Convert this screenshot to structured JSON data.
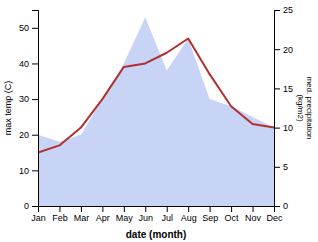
{
  "chart_data": {
    "type": "line",
    "xlabel": "date (month)",
    "ylabel": "max temp (C)",
    "y2label": "med. precipitation\n(kg/m2)",
    "categories": [
      "Jan",
      "Feb",
      "Mar",
      "Apr",
      "May",
      "Jun",
      "Jul",
      "Aug",
      "Sep",
      "Oct",
      "Nov",
      "Dec"
    ],
    "series": [
      {
        "type": "area",
        "color": "#c8d4f5",
        "values": [
          20,
          18,
          20,
          30,
          40,
          53,
          38,
          47,
          30,
          28,
          25,
          22
        ]
      },
      {
        "type": "line",
        "color": "#b03030",
        "values": [
          15,
          17,
          22,
          30,
          39,
          40,
          43,
          47,
          37,
          28,
          23,
          22
        ]
      }
    ],
    "ylim": [
      0,
      55
    ],
    "yticks": [
      0,
      10,
      20,
      30,
      40,
      50
    ],
    "y2lim": [
      0,
      25
    ],
    "y2ticks": [
      0,
      5,
      10,
      15,
      20,
      25
    ],
    "grid": false
  }
}
